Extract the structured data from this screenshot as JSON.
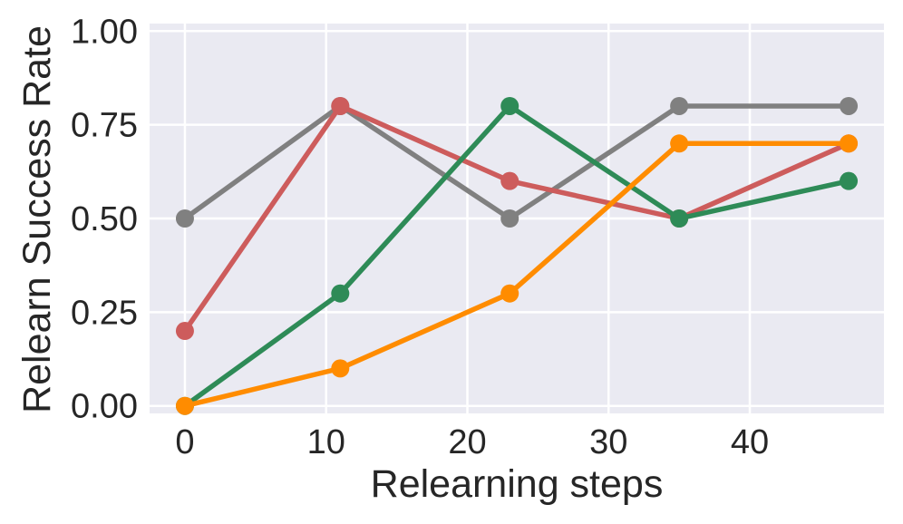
{
  "chart_data": {
    "type": "line",
    "title": "",
    "xlabel": "Relearning steps",
    "ylabel": "Relearn Success Rate",
    "xlim": [
      -2.5,
      49.5
    ],
    "ylim": [
      -0.02,
      1.02
    ],
    "x_ticks": [
      0,
      10,
      20,
      30,
      40
    ],
    "x_tick_labels": [
      "0",
      "10",
      "20",
      "30",
      "40"
    ],
    "y_ticks": [
      0,
      0.25,
      0.5,
      0.75,
      1.0
    ],
    "y_tick_labels": [
      "0.00",
      "0.25",
      "0.50",
      "0.75",
      "1.00"
    ],
    "grid": true,
    "background": "#eaeaf2",
    "grid_color": "#ffffff",
    "x": [
      0,
      11,
      23,
      35,
      47
    ],
    "series": [
      {
        "color": "#808080",
        "values": [
          0.5,
          0.8,
          0.5,
          0.8,
          0.8
        ]
      },
      {
        "color": "#cd5c5c",
        "values": [
          0.2,
          0.8,
          0.6,
          0.5,
          0.7
        ]
      },
      {
        "color": "#2e8b57",
        "values": [
          0.0,
          0.3,
          0.8,
          0.5,
          0.6
        ]
      },
      {
        "color": "#ff8c00",
        "values": [
          0.0,
          0.1,
          0.3,
          0.7,
          0.7
        ]
      }
    ]
  }
}
